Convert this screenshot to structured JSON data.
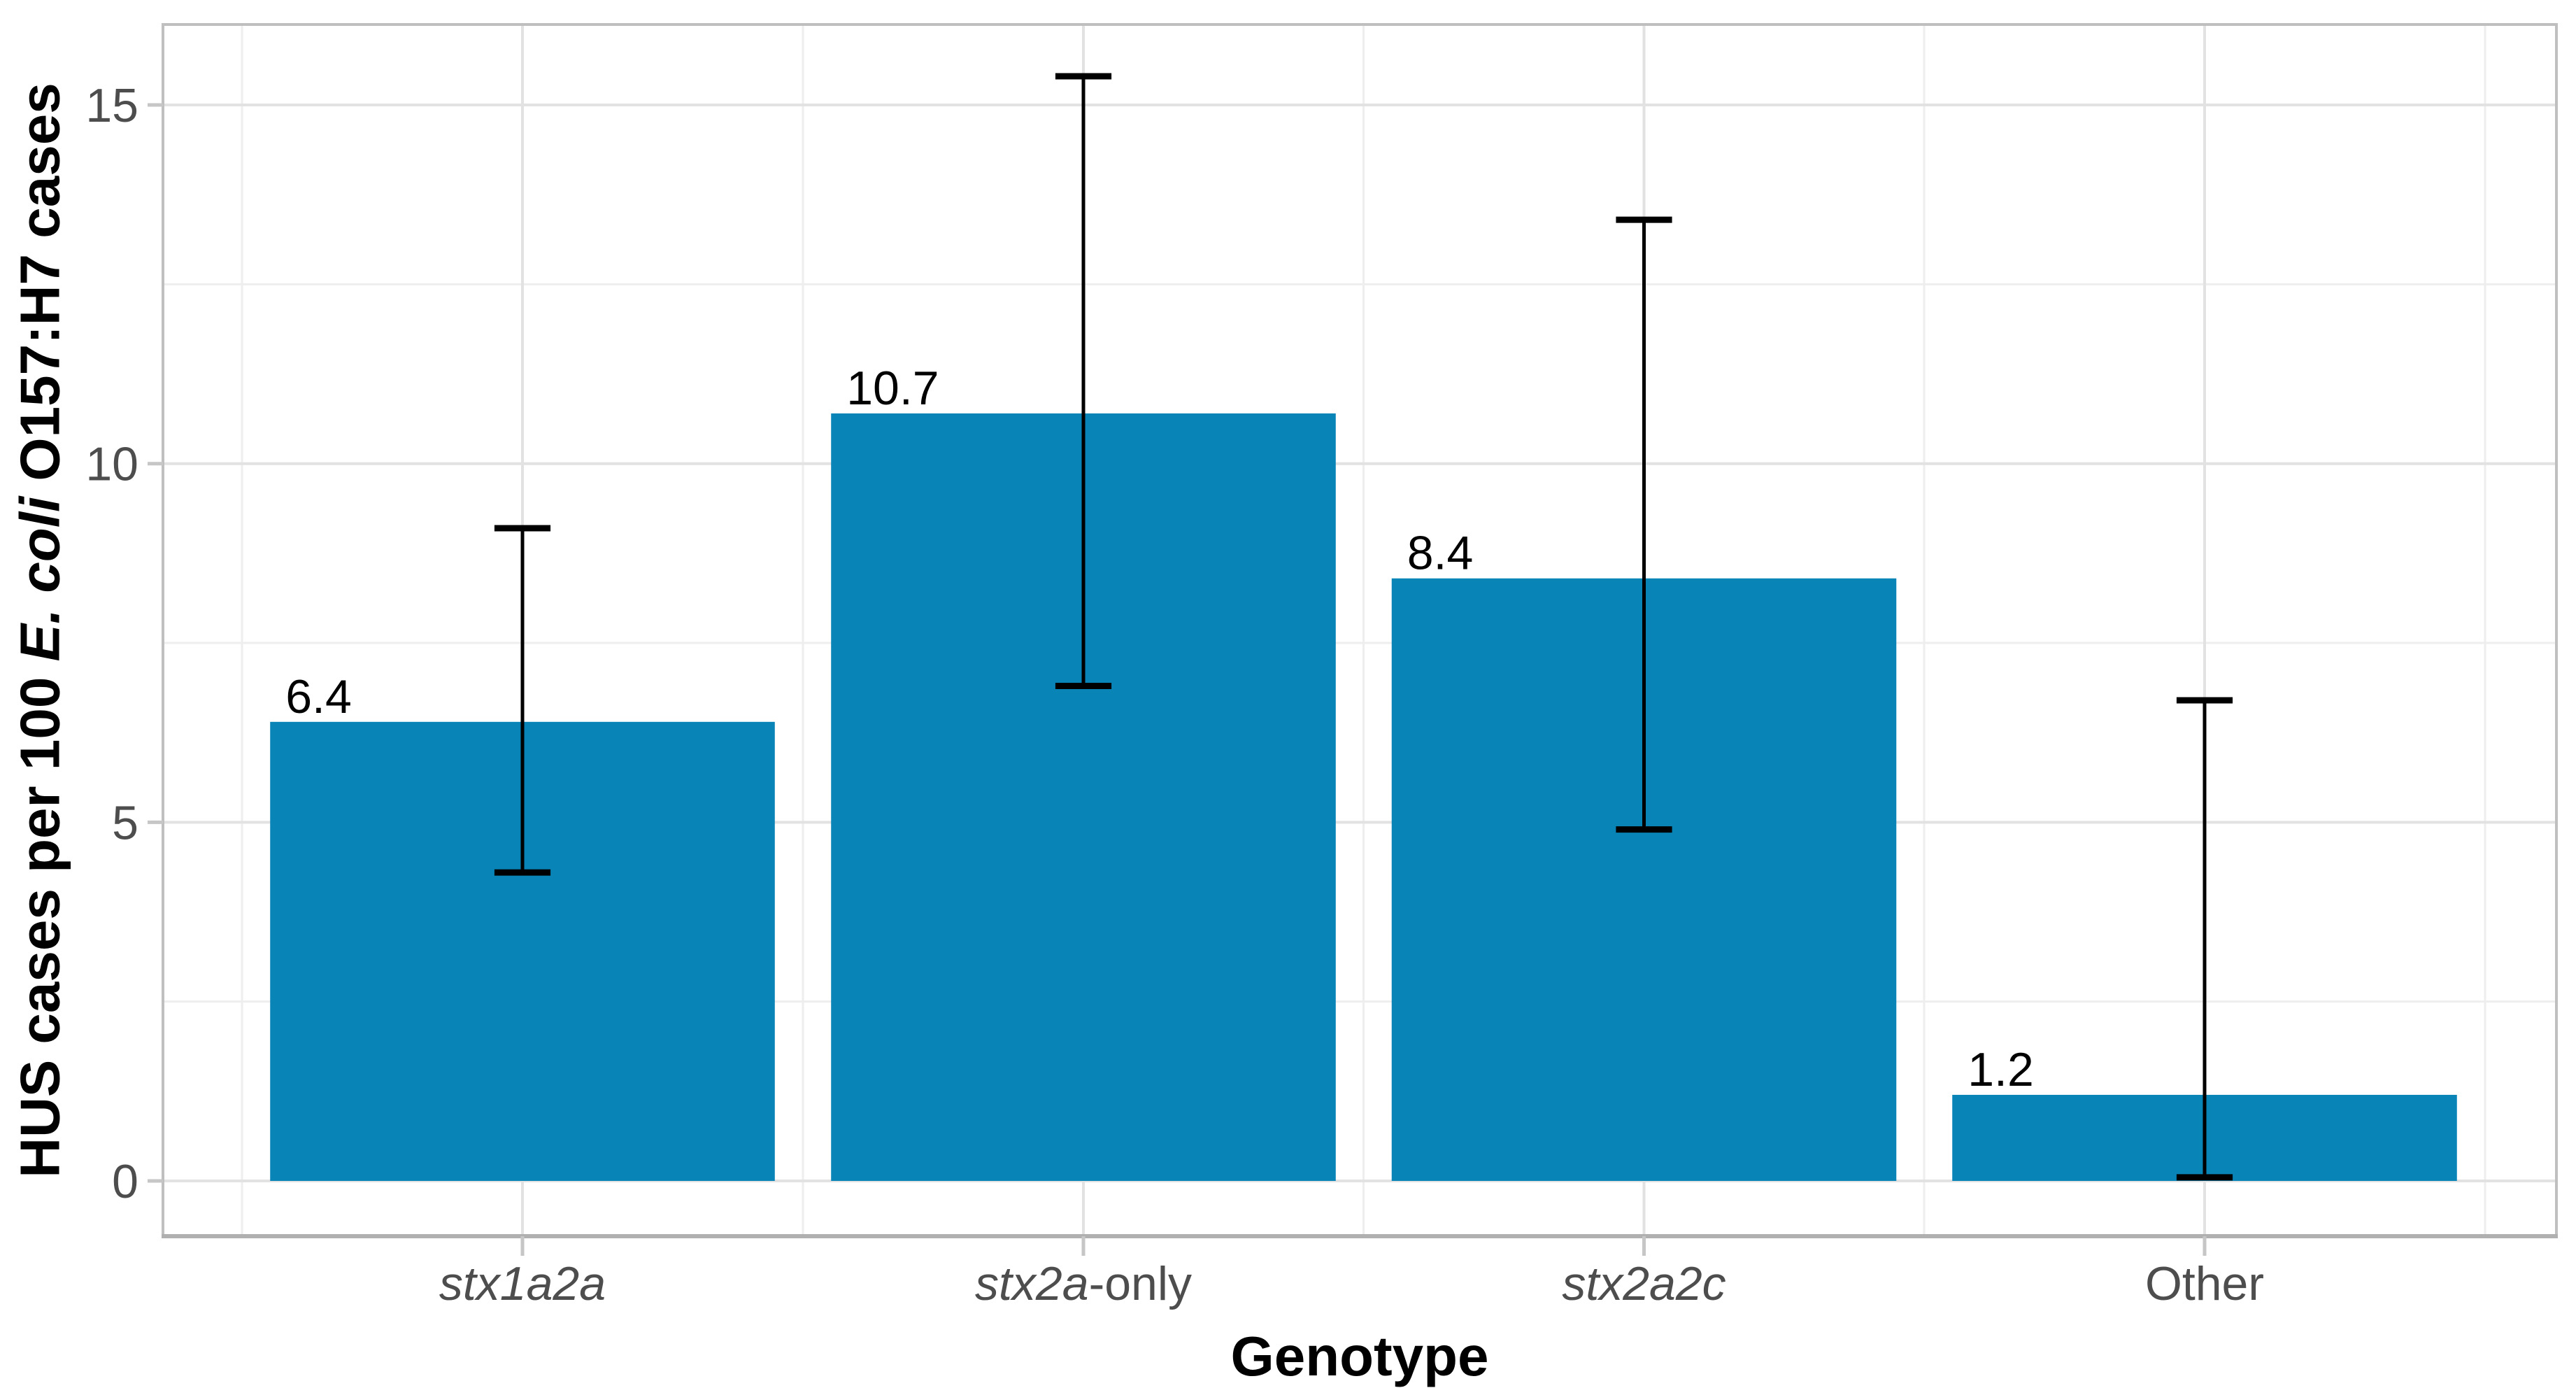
{
  "figure": {
    "background": "#ffffff",
    "bar_color": "#0884b7",
    "grid_major_color": "#e2e2e2",
    "grid_minor_color": "#eeeeee",
    "panel_border_color": "#bfbfbf",
    "axis_line_color": "#b0b0b0",
    "tick_mark_color": "#c6c6c6",
    "tick_label_color": "#4d4d4d",
    "axis_title_color": "#000000",
    "error_bar_color": "#000000",
    "value_label_color": "#000000"
  },
  "chart_data": {
    "type": "bar",
    "title": "",
    "xlabel": "Genotype",
    "ylabel": "HUS cases per 100 E. coli O157:H7 cases",
    "ylabel_parts": {
      "prefix": "HUS cases per 100 ",
      "italic": "E. coli",
      "suffix": " O157:H7 cases"
    },
    "categories": [
      "stx1a2a",
      "stx2a-only",
      "stx2a2c",
      "Other"
    ],
    "category_styles": [
      {
        "italic": "stx1a2a",
        "plain": ""
      },
      {
        "italic": "stx2a",
        "plain": "-only"
      },
      {
        "italic": "stx2a2c",
        "plain": ""
      },
      {
        "italic": "",
        "plain": "Other"
      }
    ],
    "values": [
      6.4,
      10.7,
      8.4,
      1.2
    ],
    "value_labels": [
      "6.4",
      "10.7",
      "8.4",
      "1.2"
    ],
    "error_low": [
      4.3,
      6.9,
      4.9,
      0.05
    ],
    "error_high": [
      9.1,
      15.4,
      13.4,
      6.7
    ],
    "y_ticks": [
      0,
      5,
      10,
      15
    ],
    "y_tick_labels": [
      "0",
      "5",
      "10",
      "15"
    ],
    "y_minor_ticks": [
      2.5,
      7.5,
      12.5
    ],
    "ylim": [
      -0.8,
      16.2
    ],
    "grid": "major+minor",
    "legend": "none",
    "bar_width_fraction": 0.9,
    "error_cap_width_fraction": 0.1
  }
}
